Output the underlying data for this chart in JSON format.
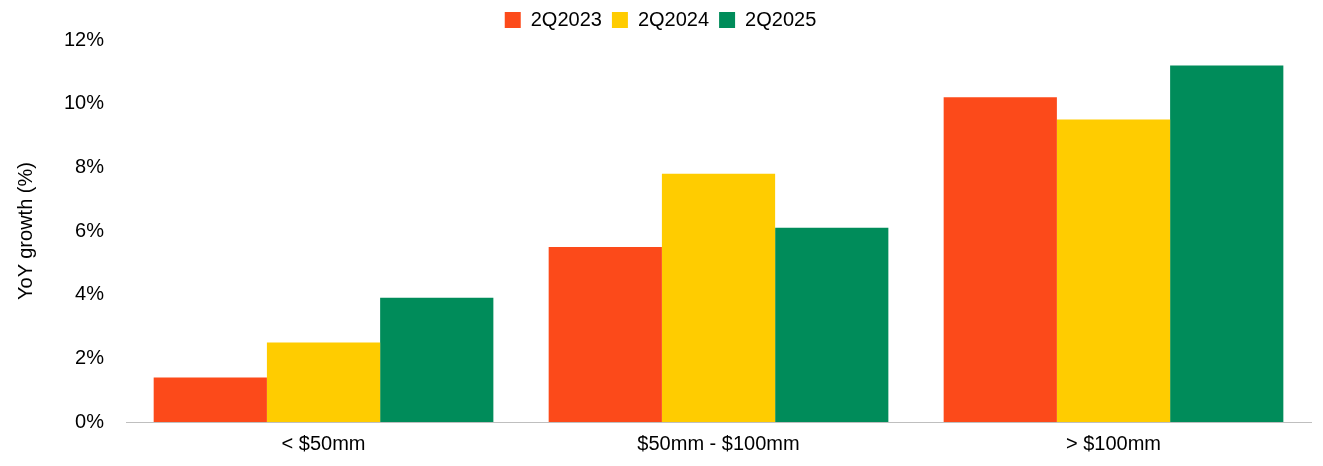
{
  "chart_data": {
    "type": "bar",
    "ylabel": "YoY growth (%)",
    "categories": [
      "< $50mm",
      "$50mm - $100mm",
      "> $100mm"
    ],
    "series": [
      {
        "name": "2Q2023",
        "color": "#fc4a1a",
        "values": [
          1.4,
          5.5,
          10.2
        ]
      },
      {
        "name": "2Q2024",
        "color": "#ffcc00",
        "values": [
          2.5,
          7.8,
          9.5
        ]
      },
      {
        "name": "2Q2025",
        "color": "#008c5a",
        "values": [
          3.9,
          6.1,
          11.2
        ]
      }
    ],
    "ylim": [
      0,
      12
    ],
    "yticks": [
      {
        "value": 0,
        "label": "0%"
      },
      {
        "value": 2,
        "label": "2%"
      },
      {
        "value": 4,
        "label": "4%"
      },
      {
        "value": 6,
        "label": "6%"
      },
      {
        "value": 8,
        "label": "8%"
      },
      {
        "value": 10,
        "label": "10%"
      },
      {
        "value": 12,
        "label": "12%"
      }
    ],
    "grid": false,
    "legend": "top"
  }
}
